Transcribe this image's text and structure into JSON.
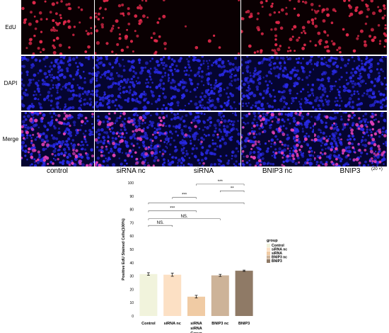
{
  "micrograph_panel": {
    "rows": [
      {
        "label": "EdU",
        "stain": "edu",
        "color": "#e0284a"
      },
      {
        "label": "DAPI",
        "stain": "dapi",
        "color": "#2a2ae8"
      },
      {
        "label": "Merge",
        "stain": "merge",
        "color": "#d23aa8"
      }
    ],
    "columns": [
      "control",
      "siRNA nc",
      "siRNA",
      "BNIP3 nc",
      "BNIP3"
    ],
    "magnification": "(20 ×)",
    "relative_edu_density": [
      1.0,
      1.0,
      0.1,
      1.0,
      1.15
    ]
  },
  "chart_data": {
    "type": "bar",
    "categories": [
      "Control",
      "siRNA nc",
      "siRNA",
      "BNIP3 nc",
      "BNIP3"
    ],
    "values": [
      31.5,
      31,
      14.5,
      30.5,
      34
    ],
    "errors": [
      1,
      1.2,
      1,
      0.8,
      0.5
    ],
    "colors": [
      "#f1f3dc",
      "#fce0c4",
      "#f0cba4",
      "#cdb398",
      "#8f7a66"
    ],
    "xlabel": "siRNA\nGroup",
    "ylabel": "Positive EdU Stained Cells(100%)",
    "ylim": [
      0,
      100
    ],
    "yticks": [
      0,
      10,
      20,
      30,
      40,
      50,
      60,
      70,
      80,
      90,
      100
    ],
    "legend": {
      "title": "group",
      "position": "right",
      "items": [
        "Control",
        "siRNA nc",
        "siRNA",
        "BNIP3 nc",
        "BNIP3"
      ]
    },
    "significance": [
      {
        "from": 0,
        "to": 4,
        "label": "",
        "level": 85
      },
      {
        "from": 3,
        "to": 4,
        "label": "**",
        "level": 94
      },
      {
        "from": 2,
        "to": 4,
        "label": "***",
        "level": 99
      },
      {
        "from": 1,
        "to": 2,
        "label": "***",
        "level": 89
      },
      {
        "from": 0,
        "to": 2,
        "label": "***",
        "level": 79
      },
      {
        "from": 0,
        "to": 3,
        "label": "NS.",
        "level": 73
      },
      {
        "from": 0,
        "to": 1,
        "label": "NS.",
        "level": 68
      }
    ]
  }
}
